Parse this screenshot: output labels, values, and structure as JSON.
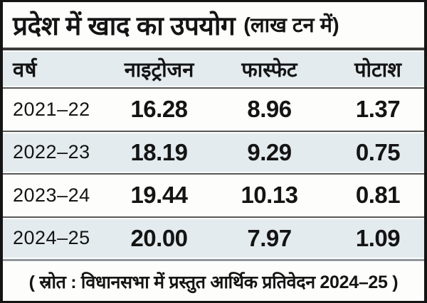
{
  "title": {
    "main": "प्रदेश में खाद का उपयोग",
    "unit": "(लाख टन में)"
  },
  "table": {
    "headers": {
      "year": "वर्ष",
      "nitrogen": "नाइट्रोजन",
      "phosphate": "फास्फेट",
      "potash": "पोटाश"
    },
    "rows": [
      {
        "year": "2021–22",
        "nitrogen": "16.28",
        "phosphate": "8.96",
        "potash": "1.37"
      },
      {
        "year": "2022–23",
        "nitrogen": "18.19",
        "phosphate": "9.29",
        "potash": "0.75"
      },
      {
        "year": "2023–24",
        "nitrogen": "19.44",
        "phosphate": "10.13",
        "potash": "0.81"
      },
      {
        "year": "2024–25",
        "nitrogen": "20.00",
        "phosphate": "7.97",
        "potash": "1.09"
      }
    ]
  },
  "footer": {
    "source": "( स्रोत : विधानसभा में प्रस्तुत आर्थिक प्रतिवेदन 2024–25 )"
  },
  "colors": {
    "stripe_blue": "#e3ebee",
    "background": "#fdfdfb",
    "border_black": "#141414",
    "separator_dark": "#3a3a3a",
    "separator_gray": "#90989d",
    "text": "#141414"
  },
  "chart_data": {
    "type": "table",
    "title": "प्रदेश में खाद का उपयोग",
    "unit_label": "(लाख टन में)",
    "categories": [
      "2021–22",
      "2022–23",
      "2023–24",
      "2024–25"
    ],
    "series": [
      {
        "name": "नाइट्रोजन",
        "values": [
          16.28,
          18.19,
          19.44,
          20.0
        ]
      },
      {
        "name": "फास्फेट",
        "values": [
          8.96,
          9.29,
          10.13,
          7.97
        ]
      },
      {
        "name": "पोटाश",
        "values": [
          1.37,
          0.75,
          0.81,
          1.09
        ]
      }
    ],
    "source": "( स्रोत : विधानसभा में प्रस्तुत आर्थिक प्रतिवेदन 2024–25 )"
  }
}
